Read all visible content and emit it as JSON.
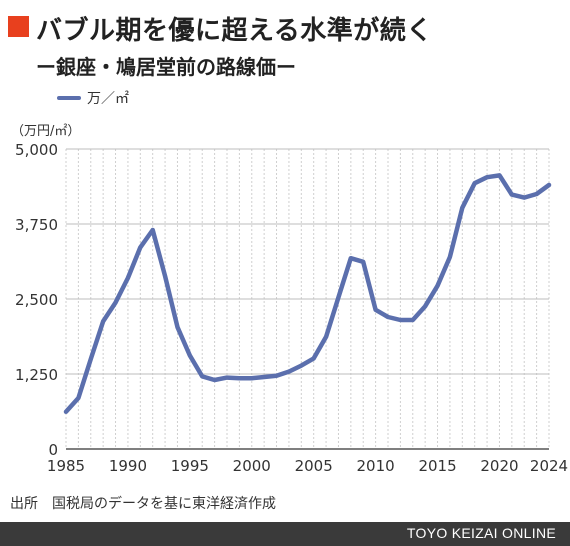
{
  "header": {
    "title": "バブル期を優に超える水準が続く",
    "subtitle": "ー銀座・鳩居堂前の路線価ー"
  },
  "colors": {
    "accent": "#e8401e",
    "series": "#5b6fad",
    "footer_bg": "#3a3a3a"
  },
  "chart_data": {
    "type": "line",
    "title": "バブル期を優に超える水準が続く",
    "subtitle": "ー銀座・鳩居堂前の路線価ー",
    "unit_label": "（万円/㎡）",
    "x": [
      1985,
      1986,
      1987,
      1988,
      1989,
      1990,
      1991,
      1992,
      1993,
      1994,
      1995,
      1996,
      1997,
      1998,
      1999,
      2000,
      2001,
      2002,
      2003,
      2004,
      2005,
      2006,
      2007,
      2008,
      2009,
      2010,
      2011,
      2012,
      2013,
      2014,
      2015,
      2016,
      2017,
      2018,
      2019,
      2020,
      2021,
      2022,
      2023,
      2024
    ],
    "series": [
      {
        "name": "万／㎡",
        "values": [
          620,
          850,
          1500,
          2130,
          2440,
          2850,
          3360,
          3650,
          2880,
          2030,
          1560,
          1210,
          1150,
          1190,
          1180,
          1180,
          1200,
          1220,
          1290,
          1390,
          1510,
          1870,
          2530,
          3180,
          3120,
          2320,
          2200,
          2150,
          2150,
          2380,
          2720,
          3200,
          4020,
          4430,
          4530,
          4560,
          4240,
          4190,
          4250,
          4400
        ]
      }
    ],
    "xticks": [
      "1985",
      "1990",
      "1995",
      "2000",
      "2005",
      "2010",
      "2015",
      "2020",
      "2024"
    ],
    "yticks": [
      "0",
      "1,250",
      "2,500",
      "3,750",
      "5,000"
    ],
    "ylim": [
      0,
      5000
    ],
    "xlim": [
      1985,
      2024
    ],
    "grid": "vertical minor per year, horizontal major",
    "legend": "top-left"
  },
  "source": "出所　国税局のデータを基に東洋経済作成",
  "footer": {
    "brand": "TOYO KEIZAI ONLINE"
  }
}
